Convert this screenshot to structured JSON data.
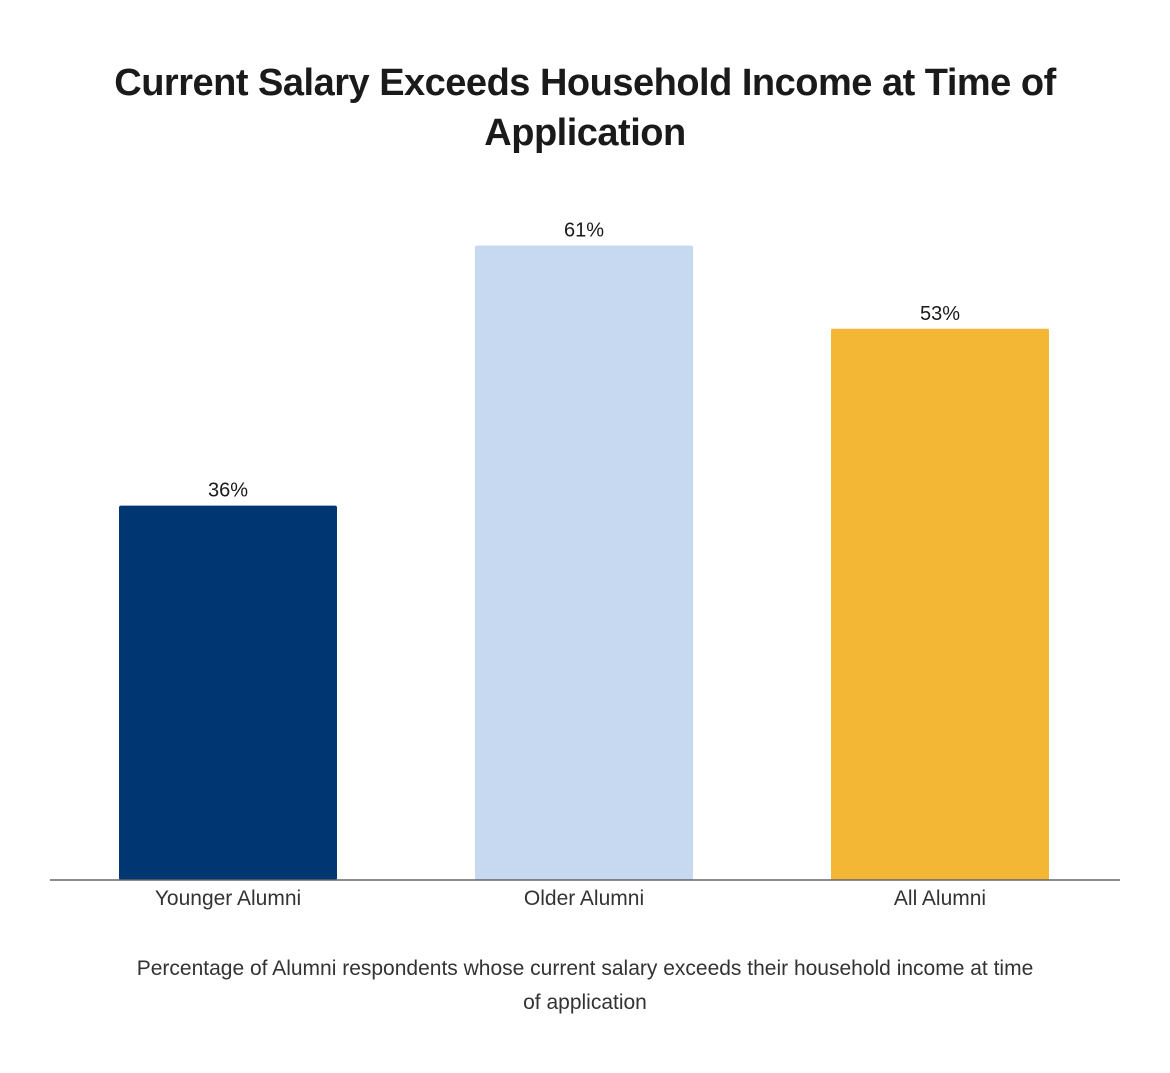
{
  "chart_data": {
    "type": "bar",
    "title": "Current Salary Exceeds Household Income at Time of Application",
    "xlabel": "Percentage of Alumni respondents whose current salary exceeds their household income at time of application",
    "ylabel": "",
    "categories": [
      "Younger Alumni",
      "Older Alumni",
      "All Alumni"
    ],
    "values": [
      36,
      61,
      53
    ],
    "value_labels": [
      "36%",
      "61%",
      "53%"
    ],
    "unit": "%",
    "ylim": [
      0,
      70
    ],
    "grid": false,
    "legend": "none",
    "colors": [
      "#003772",
      "#c7d9f0",
      "#f3b635"
    ]
  }
}
